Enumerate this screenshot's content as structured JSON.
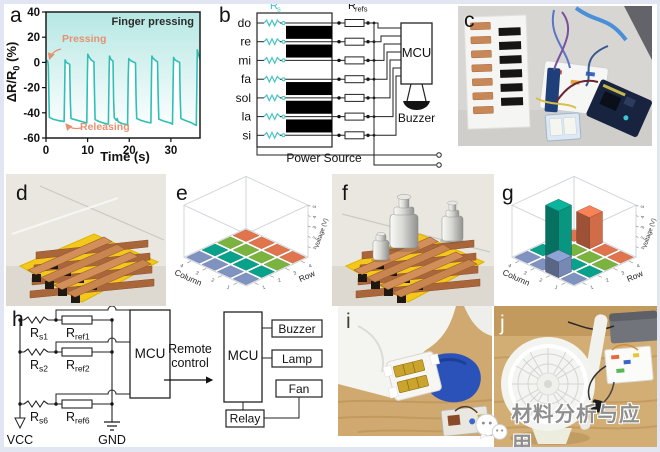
{
  "labels": {
    "a": "a",
    "b": "b",
    "c": "c",
    "d": "d",
    "e": "e",
    "f": "f",
    "g": "g",
    "h": "h",
    "i": "i",
    "j": "j"
  },
  "panel_a": {
    "ylabel_main": "ΔR/R",
    "ylabel_sub": "0",
    "ylabel_suffix": " (%)"
  },
  "chart_data": [
    {
      "id": "panel_a",
      "type": "line",
      "title": "Finger pressing",
      "xlabel": "Time (s)",
      "ylabel": "ΔR/R0 (%)",
      "xlim": [
        0,
        37
      ],
      "ylim": [
        -60,
        40
      ],
      "xticks": [
        0,
        10,
        20,
        30
      ],
      "yticks": [
        40,
        20,
        0,
        -20,
        -40,
        -60
      ],
      "line_color": "#2fbfb4",
      "fill_color": "#4fc7bd",
      "annotations": [
        {
          "text": "Pressing",
          "color": "#e59171"
        },
        {
          "text": "Releasing",
          "color": "#e59171"
        },
        {
          "text": "Finger pressing",
          "color": "#2b2b2b"
        }
      ],
      "points": [
        [
          0,
          0
        ],
        [
          0.25,
          1.5
        ],
        [
          0.45,
          0.5
        ],
        [
          0.55,
          -3
        ],
        [
          0.8,
          -43.5
        ],
        [
          1.6,
          -45
        ],
        [
          2.8,
          -46
        ],
        [
          4.2,
          -46.8
        ],
        [
          4.35,
          -47
        ],
        [
          4.5,
          -20
        ],
        [
          4.6,
          2
        ],
        [
          4.9,
          0
        ],
        [
          5.4,
          -1
        ],
        [
          5.7,
          -1.5
        ],
        [
          5.85,
          -30
        ],
        [
          6,
          -44.5
        ],
        [
          7,
          -45.5
        ],
        [
          8.6,
          -47
        ],
        [
          9.8,
          -48
        ],
        [
          9.95,
          -10
        ],
        [
          10.05,
          6.5
        ],
        [
          10.4,
          4
        ],
        [
          11,
          1.5
        ],
        [
          11.5,
          0.5
        ],
        [
          11.65,
          -25
        ],
        [
          11.8,
          -45.5
        ],
        [
          12.8,
          -47
        ],
        [
          14.2,
          -48.5
        ],
        [
          15,
          -49
        ],
        [
          15.15,
          -8
        ],
        [
          15.25,
          5
        ],
        [
          15.6,
          2.5
        ],
        [
          16.1,
          1
        ],
        [
          16.25,
          -30
        ],
        [
          16.4,
          -44
        ],
        [
          16.9,
          -46
        ],
        [
          17.1,
          -44.5
        ],
        [
          17.3,
          -47
        ],
        [
          18.2,
          -48.5
        ],
        [
          19.6,
          -49.5
        ],
        [
          19.75,
          -12
        ],
        [
          19.9,
          3
        ],
        [
          20.3,
          1.5
        ],
        [
          21.2,
          0
        ],
        [
          21.5,
          -0.5
        ],
        [
          21.65,
          -30
        ],
        [
          21.8,
          -44.5
        ],
        [
          22.8,
          -46
        ],
        [
          24.4,
          -47.5
        ],
        [
          25.2,
          -48
        ],
        [
          25.35,
          -10
        ],
        [
          25.45,
          5
        ],
        [
          25.8,
          3
        ],
        [
          26.5,
          1
        ],
        [
          26.8,
          0.5
        ],
        [
          26.95,
          -28
        ],
        [
          27.1,
          -45
        ],
        [
          28.2,
          -46.5
        ],
        [
          29.8,
          -48
        ],
        [
          30.4,
          -49
        ],
        [
          30.55,
          -12
        ],
        [
          30.65,
          4
        ],
        [
          31,
          2
        ],
        [
          31.8,
          0.5
        ],
        [
          32.1,
          0
        ],
        [
          32.25,
          -28
        ],
        [
          32.4,
          -44.5
        ],
        [
          33.4,
          -46
        ],
        [
          35,
          -48
        ],
        [
          36.1,
          -50
        ],
        [
          36.25,
          -15
        ],
        [
          36.35,
          10
        ],
        [
          36.6,
          7
        ],
        [
          36.9,
          3.5
        ],
        [
          37,
          2.5
        ]
      ]
    },
    {
      "id": "panel_e",
      "type": "bar3d",
      "xlabel": "Row",
      "ylabel": "Column",
      "zlabel": "Voltage (V)",
      "zlim": [
        0,
        5
      ],
      "zticks": [
        1,
        2,
        3,
        4,
        5
      ],
      "row_ticks": [
        "1",
        "2",
        "3",
        "4"
      ],
      "column_ticks": [
        "1",
        "2",
        "3",
        "4"
      ],
      "row_colors": [
        "#7f92c0",
        "#0aa18b",
        "#7ab33e",
        "#e0744d"
      ],
      "values": [
        [
          0,
          0,
          0,
          0
        ],
        [
          0,
          0,
          0,
          0
        ],
        [
          0,
          0,
          0,
          0
        ],
        [
          0,
          0,
          0,
          0
        ]
      ]
    },
    {
      "id": "panel_g",
      "type": "bar3d",
      "xlabel": "Row",
      "ylabel": "Column",
      "zlabel": "Voltage (V)",
      "zlim": [
        0,
        5
      ],
      "zticks": [
        1,
        2,
        3,
        4,
        5
      ],
      "row_ticks": [
        "1",
        "2",
        "3",
        "4"
      ],
      "column_ticks": [
        "1",
        "2",
        "3",
        "4"
      ],
      "row_colors": [
        "#7f92c0",
        "#0aa18b",
        "#7ab33e",
        "#e0744d"
      ],
      "values": [
        [
          0,
          1.5,
          0,
          0
        ],
        [
          0,
          0,
          5,
          0
        ],
        [
          0,
          0,
          0,
          0
        ],
        [
          0,
          0,
          3,
          0
        ]
      ]
    }
  ],
  "panel_b": {
    "accent": "#45c2c6",
    "rs_main": "R",
    "rs_sub": "s",
    "rrefs_main": "R",
    "rrefs_sub": "refs",
    "notes": [
      "do",
      "re",
      "mi",
      "fa",
      "sol",
      "la",
      "si"
    ],
    "mcu": "MCU",
    "buzzer": "Buzzer",
    "power": "Power Source"
  },
  "panel_h": {
    "rows": [
      {
        "rs_main": "R",
        "rs_sub": "s1",
        "rref_main": "R",
        "rref_sub": "ref1"
      },
      {
        "rs_main": "R",
        "rs_sub": "s2",
        "rref_main": "R",
        "rref_sub": "ref2"
      },
      {
        "rs_main": "R",
        "rs_sub": "s6",
        "rref_main": "R",
        "rref_sub": "ref6"
      }
    ],
    "vcc": "VCC",
    "gnd": "GND",
    "mcu1": "MCU",
    "remote_line1": "Remote",
    "remote_line2": "control",
    "mcu2": "MCU",
    "devices": [
      "Buzzer",
      "Lamp",
      "Fan"
    ],
    "relay": "Relay"
  },
  "watermark": {
    "text": "材料分析与应用"
  }
}
